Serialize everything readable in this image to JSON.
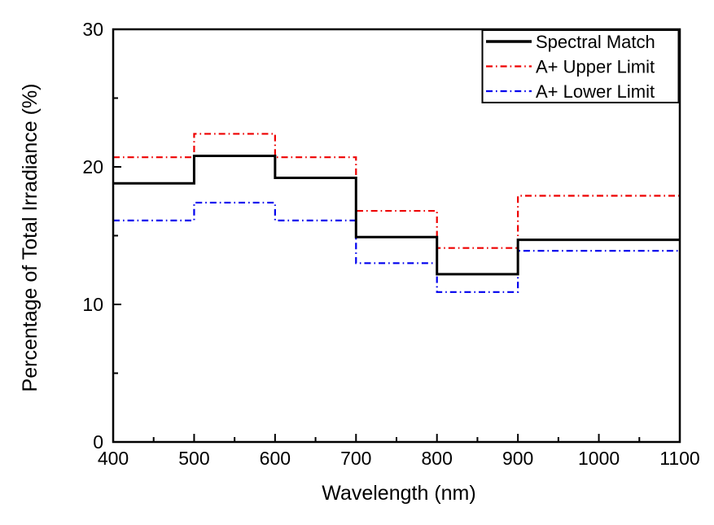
{
  "chart_data": {
    "type": "step-line",
    "title": "",
    "xlabel": "Wavelength (nm)",
    "ylabel": "Percentage of Total Irradiance (%)",
    "xlim": [
      400,
      1100
    ],
    "ylim": [
      0,
      30
    ],
    "x_ticks": [
      400,
      500,
      600,
      700,
      800,
      900,
      1000,
      1100
    ],
    "x_minor_ticks": [
      450,
      550,
      650,
      750,
      850,
      950,
      1050
    ],
    "y_ticks": [
      0,
      10,
      20,
      30
    ],
    "y_minor_ticks": [
      5,
      15,
      25
    ],
    "grid": false,
    "legend_position": "top-right-inside",
    "band_edges_nm": [
      400,
      500,
      600,
      700,
      800,
      900,
      1100
    ],
    "series": [
      {
        "name": "Spectral Match",
        "color": "#000000",
        "line_style": "solid",
        "line_width": 3,
        "values": [
          18.8,
          20.8,
          19.2,
          14.9,
          12.2,
          14.7
        ]
      },
      {
        "name": "A+ Upper Limit",
        "color": "#ee0000",
        "line_style": "dash-dot",
        "line_width": 2.2,
        "values": [
          20.7,
          22.4,
          20.7,
          16.8,
          14.1,
          17.9
        ]
      },
      {
        "name": "A+ Lower Limit",
        "color": "#0000ee",
        "line_style": "dash-dot",
        "line_width": 2.2,
        "values": [
          16.1,
          17.4,
          16.1,
          13.0,
          10.9,
          13.9
        ]
      }
    ]
  }
}
